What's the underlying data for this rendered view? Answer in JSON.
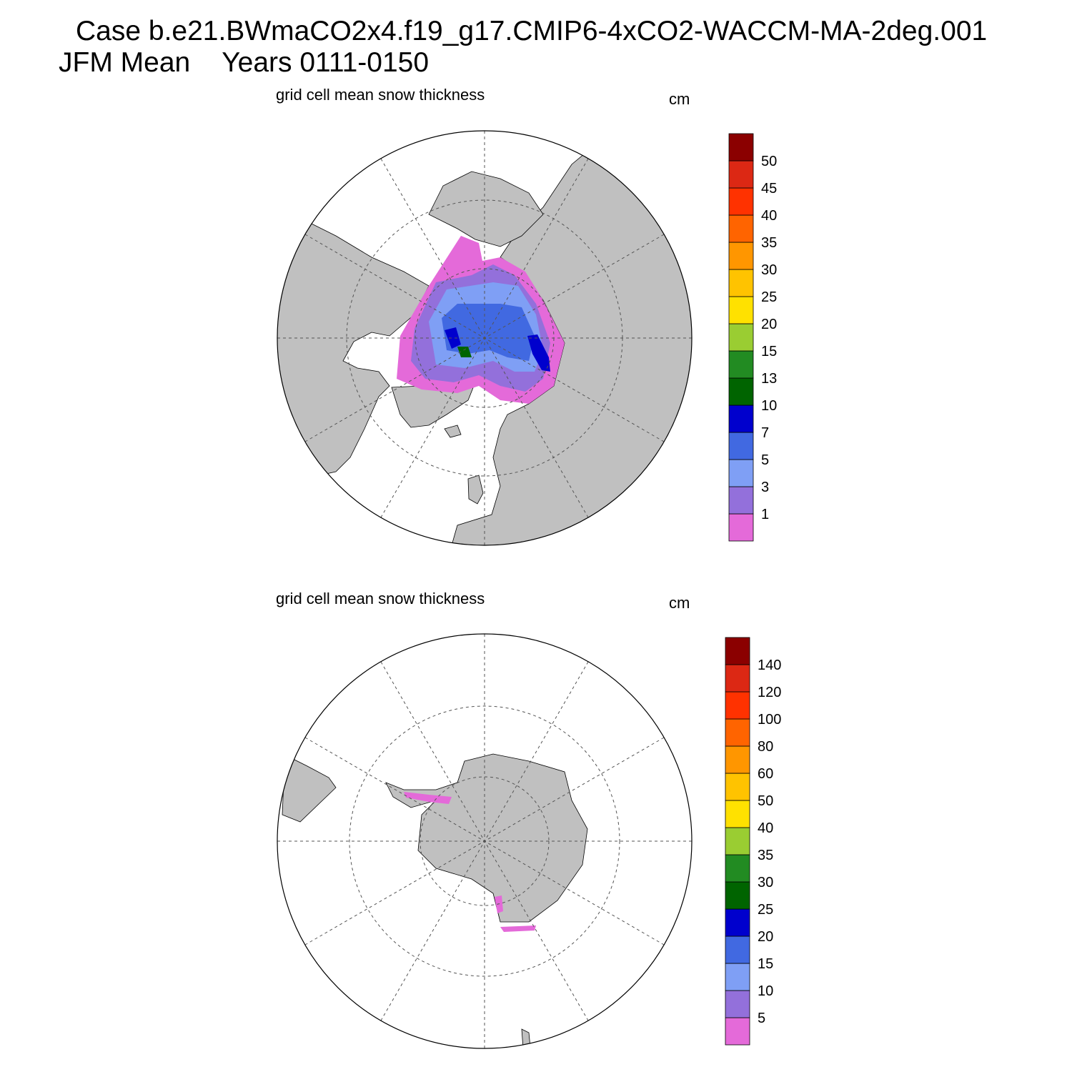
{
  "header": {
    "case_line": "Case b.e21.BWmaCO2x4.f19_g17.CMIP6-4xCO2-WACCM-MA-2deg.001",
    "season": "JFM Mean",
    "years": "Years 0111-0150"
  },
  "colors": {
    "land": "#c0c0c0",
    "ocean": "#ffffff",
    "grid": "#555555",
    "scale": [
      "#e46ad9",
      "#9370db",
      "#7f9ff5",
      "#4169e1",
      "#0000cd",
      "#006400",
      "#228b22",
      "#9acd32",
      "#ffe100",
      "#ffc300",
      "#ff9600",
      "#ff6400",
      "#ff3200",
      "#dc2814",
      "#8b0000"
    ]
  },
  "panels": [
    {
      "id": "north",
      "title": "grid cell mean snow thickness",
      "units": "cm",
      "hemisphere": "Arctic",
      "levels": [
        "1",
        "3",
        "5",
        "7",
        "10",
        "13",
        "15",
        "20",
        "25",
        "30",
        "35",
        "40",
        "45",
        "50"
      ]
    },
    {
      "id": "south",
      "title": "grid cell mean snow thickness",
      "units": "cm",
      "hemisphere": "Antarctic",
      "levels": [
        "5",
        "10",
        "15",
        "20",
        "25",
        "30",
        "35",
        "40",
        "50",
        "60",
        "80",
        "100",
        "120",
        "140"
      ]
    }
  ]
}
